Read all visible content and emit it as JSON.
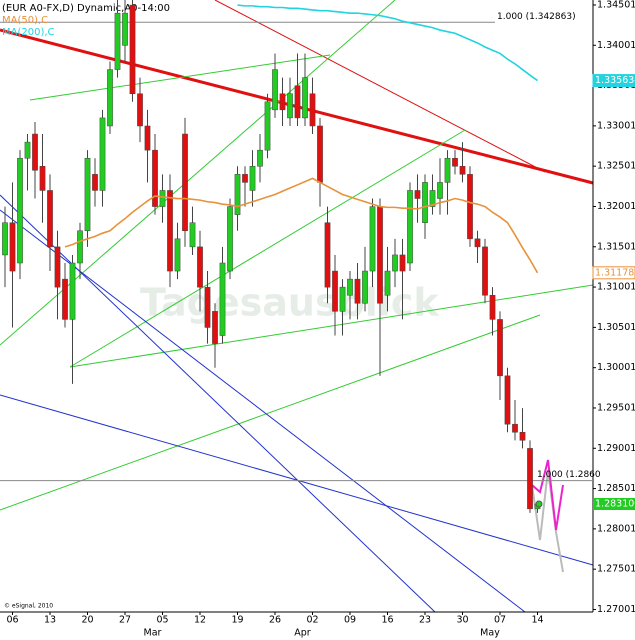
{
  "chart_data": {
    "type": "candlestick",
    "title": "(EUR A0-FX,D) Dynamic,A0-14:00",
    "watermark": "Tagesausblick",
    "credit": "© eSignal, 2010",
    "categories": [
      null,
      "06",
      null,
      null,
      null,
      null,
      "13",
      null,
      null,
      null,
      null,
      "20",
      null,
      null,
      null,
      null,
      "27",
      null,
      null,
      null,
      null,
      "05",
      null,
      null,
      null,
      null,
      "12",
      null,
      null,
      null,
      null,
      "19",
      null,
      null,
      null,
      null,
      "26",
      null,
      null,
      null,
      null,
      "02",
      null,
      null,
      null,
      null,
      "09",
      null,
      null,
      null,
      null,
      "16",
      null,
      null,
      null,
      null,
      "23",
      null,
      null,
      null,
      null,
      "30",
      null,
      null,
      null,
      null,
      "07",
      null,
      null,
      null,
      null,
      "14"
    ],
    "months": [
      null,
      null,
      null,
      null,
      null,
      null,
      null,
      null,
      null,
      null,
      null,
      null,
      null,
      null,
      null,
      null,
      null,
      null,
      null,
      null,
      null,
      "Mar",
      null,
      null,
      null,
      null,
      null,
      null,
      null,
      null,
      null,
      null,
      null,
      null,
      null,
      null,
      null,
      null,
      null,
      null,
      null,
      "Apr",
      null,
      null,
      null,
      null,
      null,
      null,
      null,
      null,
      null,
      null,
      null,
      null,
      null,
      null,
      null,
      null,
      null,
      null,
      null,
      null,
      null,
      null,
      null,
      null,
      "May",
      null,
      null,
      null,
      null,
      null
    ],
    "open": [
      1.314,
      1.318,
      1.313,
      1.326,
      1.329,
      1.325,
      1.322,
      1.315,
      1.311,
      1.306,
      1.313,
      1.317,
      1.324,
      1.322,
      1.33,
      1.337,
      1.34,
      1.345,
      1.334,
      1.33,
      1.327,
      1.32,
      1.322,
      1.312,
      1.329,
      1.315,
      1.315,
      1.31,
      1.307,
      1.304,
      1.312,
      1.319,
      1.324,
      1.322,
      1.325,
      1.327,
      1.332,
      1.334,
      1.331,
      1.335,
      1.331,
      1.334,
      1.33,
      1.318,
      1.312,
      1.307,
      1.309,
      1.311,
      1.308,
      1.312,
      1.32,
      1.309,
      1.312,
      1.314,
      1.313,
      1.322,
      1.318,
      1.32,
      1.321,
      1.323,
      1.326,
      1.325,
      1.324,
      1.316,
      1.315,
      1.309,
      1.306,
      1.299,
      1.293,
      1.292,
      1.29,
      1.2825
    ],
    "high": [
      1.32,
      1.323,
      1.327,
      1.329,
      1.3305,
      1.329,
      1.324,
      1.317,
      1.313,
      1.314,
      1.318,
      1.327,
      1.326,
      1.332,
      1.338,
      1.346,
      1.346,
      1.346,
      1.336,
      1.332,
      1.329,
      1.324,
      1.324,
      1.318,
      1.331,
      1.32,
      1.317,
      1.312,
      1.308,
      1.315,
      1.321,
      1.325,
      1.325,
      1.327,
      1.329,
      1.334,
      1.339,
      1.336,
      1.336,
      1.339,
      1.339,
      1.336,
      1.331,
      1.32,
      1.314,
      1.311,
      1.312,
      1.313,
      1.315,
      1.321,
      1.321,
      1.315,
      1.316,
      1.316,
      1.323,
      1.324,
      1.324,
      1.324,
      1.326,
      1.327,
      1.327,
      1.328,
      1.325,
      1.317,
      1.316,
      1.31,
      1.307,
      1.3,
      1.296,
      1.295,
      1.291,
      1.2835
    ],
    "low": [
      1.31,
      1.305,
      1.311,
      1.322,
      1.321,
      1.318,
      1.312,
      1.306,
      1.305,
      1.298,
      1.311,
      1.315,
      1.32,
      1.32,
      1.329,
      1.336,
      1.338,
      1.333,
      1.328,
      1.323,
      1.319,
      1.318,
      1.31,
      1.311,
      1.315,
      1.314,
      1.307,
      1.303,
      1.3,
      1.303,
      1.311,
      1.317,
      1.32,
      1.32,
      1.323,
      1.326,
      1.331,
      1.33,
      1.33,
      1.33,
      1.33,
      1.329,
      1.32,
      1.308,
      1.304,
      1.304,
      1.306,
      1.306,
      1.307,
      1.31,
      1.299,
      1.307,
      1.31,
      1.306,
      1.312,
      1.318,
      1.316,
      1.319,
      1.319,
      1.319,
      1.324,
      1.323,
      1.315,
      1.313,
      1.308,
      1.304,
      1.296,
      1.292,
      1.291,
      1.29,
      1.282,
      1.282
    ],
    "close": [
      1.318,
      1.312,
      1.326,
      1.328,
      1.3245,
      1.322,
      1.315,
      1.31,
      1.306,
      1.313,
      1.317,
      1.326,
      1.322,
      1.331,
      1.337,
      1.344,
      1.344,
      1.334,
      1.33,
      1.327,
      1.32,
      1.322,
      1.312,
      1.316,
      1.317,
      1.318,
      1.31,
      1.305,
      1.303,
      1.313,
      1.32,
      1.324,
      1.323,
      1.325,
      1.327,
      1.333,
      1.337,
      1.332,
      1.334,
      1.331,
      1.336,
      1.33,
      1.323,
      1.31,
      1.307,
      1.31,
      1.311,
      1.308,
      1.312,
      1.32,
      1.308,
      1.312,
      1.314,
      1.312,
      1.322,
      1.321,
      1.323,
      1.322,
      1.323,
      1.326,
      1.325,
      1.324,
      1.316,
      1.315,
      1.309,
      1.306,
      1.299,
      1.293,
      1.292,
      1.291,
      1.2825,
      1.2831
    ],
    "last_close_label": "1.283100",
    "up_color": "#22cc22",
    "down_color": "#e01010",
    "series": [
      {
        "name": "MA(50),C",
        "color": "#e8923a",
        "label_bg": "#ffffff",
        "values": [
          null,
          null,
          null,
          null,
          null,
          null,
          null,
          null,
          1.315,
          1.3153,
          1.3157,
          1.316,
          1.3163,
          1.3167,
          1.317,
          1.3178,
          1.3185,
          1.3193,
          1.32,
          1.3207,
          1.3213,
          1.3212,
          1.3211,
          1.321,
          1.321,
          1.3209,
          1.3208,
          1.3206,
          1.3205,
          1.3203,
          1.3202,
          1.32,
          1.3203,
          1.3206,
          1.3209,
          1.3212,
          1.3215,
          1.3219,
          1.3223,
          1.3227,
          1.3231,
          1.3235,
          1.323,
          1.3225,
          1.322,
          1.3215,
          1.3212,
          1.3209,
          1.3206,
          1.3203,
          1.32,
          1.3199,
          1.3199,
          1.3198,
          1.3198,
          1.3197,
          1.32,
          1.3202,
          1.3205,
          1.3207,
          1.321,
          1.3208,
          1.3205,
          1.3203,
          1.32,
          1.3193,
          1.3187,
          1.318,
          1.3165,
          1.3149,
          1.3134,
          1.311782
        ]
      },
      {
        "name": "MA(200),C",
        "color": "#22d4e0",
        "label_bg": "#22d4e0",
        "values": [
          null,
          null,
          null,
          null,
          null,
          null,
          null,
          null,
          null,
          null,
          null,
          null,
          null,
          null,
          null,
          null,
          null,
          null,
          null,
          null,
          null,
          null,
          null,
          null,
          null,
          null,
          null,
          null,
          null,
          null,
          null,
          1.345,
          1.3449,
          1.3449,
          1.3448,
          1.3448,
          1.3447,
          1.3447,
          1.3446,
          1.3446,
          1.3445,
          1.3444,
          1.3443,
          1.3443,
          1.3442,
          1.3441,
          1.344,
          1.344,
          1.3439,
          1.3438,
          1.3437,
          1.3435,
          1.3433,
          1.343,
          1.3428,
          1.3426,
          1.3424,
          1.3422,
          1.3419,
          1.3417,
          1.3415,
          1.3411,
          1.3407,
          1.3403,
          1.3398,
          1.3394,
          1.339,
          1.3383,
          1.3377,
          1.337,
          1.3363,
          1.335634
        ]
      }
    ],
    "levels": [
      {
        "value": 1.342863,
        "label": "1.000 (1.342863)"
      },
      {
        "value": 1.286,
        "label": "1.000 (1.2860"
      }
    ],
    "ylim": [
      1.2697,
      1.34563
    ],
    "yticks": [
      1.270013,
      1.275013,
      1.280013,
      1.285013,
      1.290013,
      1.295013,
      1.300013,
      1.305013,
      1.310013,
      1.315013,
      1.320013,
      1.325013,
      1.330013,
      1.335013,
      1.340013,
      1.345013
    ]
  }
}
